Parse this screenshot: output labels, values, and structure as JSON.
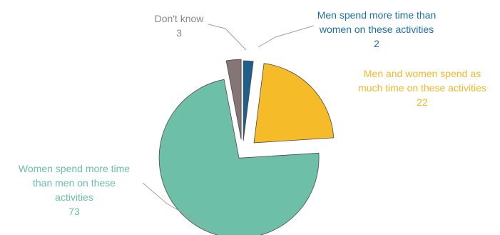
{
  "chart_data": {
    "type": "pie",
    "title": "",
    "slices": [
      {
        "label_lines": [
          "Men spend more time than",
          "women on these activities"
        ],
        "value": 2,
        "value_text": "2",
        "color": "#1f5f8b",
        "text_color": "#1f6ea5"
      },
      {
        "label_lines": [
          "Men and women spend as",
          "much time on these activities"
        ],
        "value": 22,
        "value_text": "22",
        "color": "#f6bb28",
        "text_color": "#f3b82a"
      },
      {
        "label_lines": [
          "Women spend more time",
          "than men on these",
          "activities"
        ],
        "value": 73,
        "value_text": "73",
        "color": "#6dbfa8",
        "text_color": "#6cbfa7"
      },
      {
        "label_lines": [
          "Don't know"
        ],
        "value": 3,
        "value_text": "3",
        "color": "#857675",
        "text_color": "#8a8a8a"
      }
    ]
  }
}
